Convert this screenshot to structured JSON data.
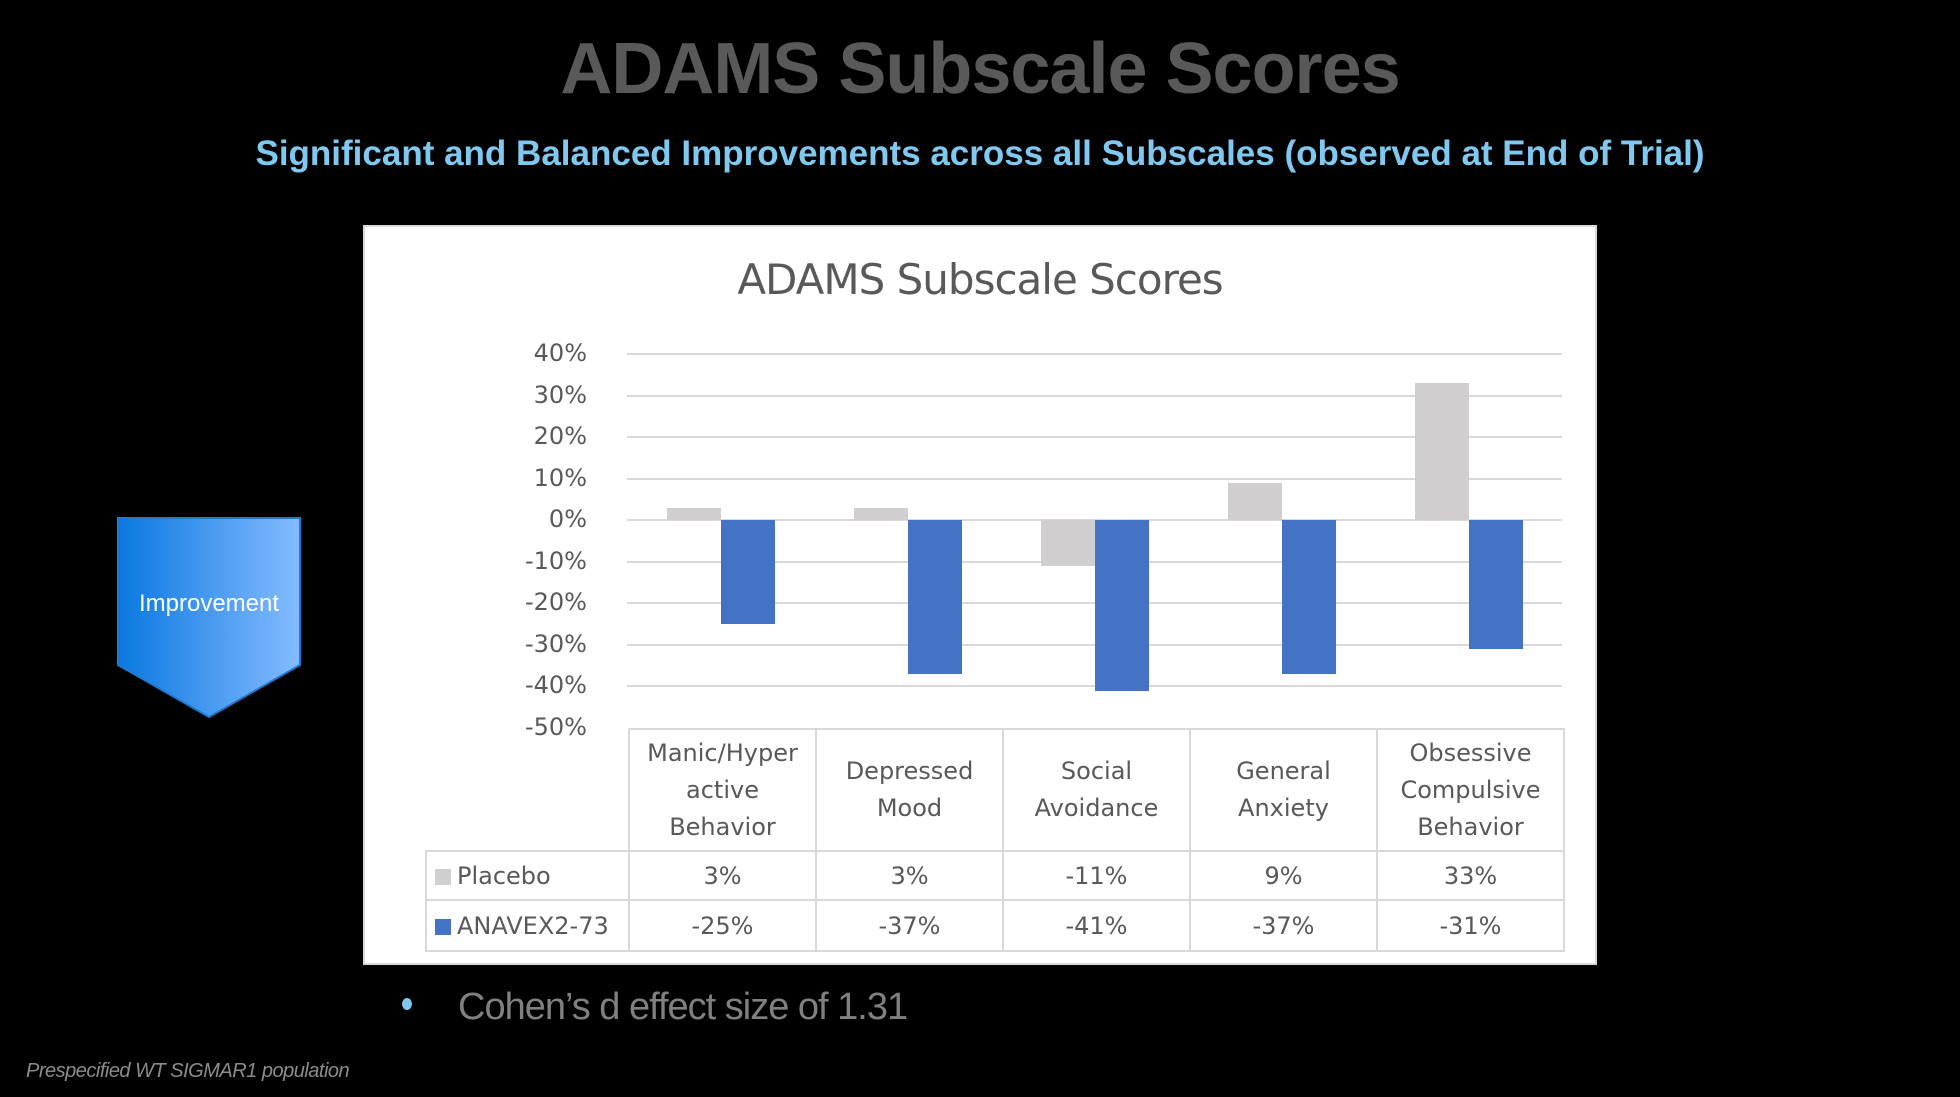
{
  "slide": {
    "title": "ADAMS Subscale Scores",
    "subtitle": "Significant and Balanced Improvements across all Subscales (observed at End of Trial)",
    "arrow_label": "Improvement",
    "bullet": "Cohen’s d effect size of 1.31",
    "footnote": "Prespecified WT SIGMAR1 population"
  },
  "colors": {
    "placebo": "#d0cece",
    "anavex": "#4472c4",
    "title": "#595959",
    "subtitle": "#7fc9f0"
  },
  "chart_data": {
    "type": "bar",
    "title": "ADAMS Subscale Scores",
    "xlabel": "",
    "ylabel": "",
    "ylim": [
      -50,
      40
    ],
    "yticks": [
      "40%",
      "30%",
      "20%",
      "10%",
      "0%",
      "-10%",
      "-20%",
      "-30%",
      "-40%",
      "-50%"
    ],
    "grid": true,
    "legend_position": "data-table",
    "categories": [
      "Manic/Hyperactive Behavior",
      "Depressed Mood",
      "Social Avoidance",
      "General Anxiety",
      "Obsessive Compulsive Behavior"
    ],
    "category_lines": [
      [
        "Manic/Hyper",
        "active",
        "Behavior"
      ],
      [
        "Depressed",
        "Mood"
      ],
      [
        "Social",
        "Avoidance"
      ],
      [
        "General",
        "Anxiety"
      ],
      [
        "Obsessive",
        "Compulsive",
        "Behavior"
      ]
    ],
    "series": [
      {
        "name": "Placebo",
        "values": [
          3,
          3,
          -11,
          9,
          33
        ],
        "labels": [
          "3%",
          "3%",
          "-11%",
          "9%",
          "33%"
        ]
      },
      {
        "name": "ANAVEX2-73",
        "values": [
          -25,
          -37,
          -41,
          -37,
          -31
        ],
        "labels": [
          "-25%",
          "-37%",
          "-41%",
          "-37%",
          "-31%"
        ]
      }
    ]
  }
}
